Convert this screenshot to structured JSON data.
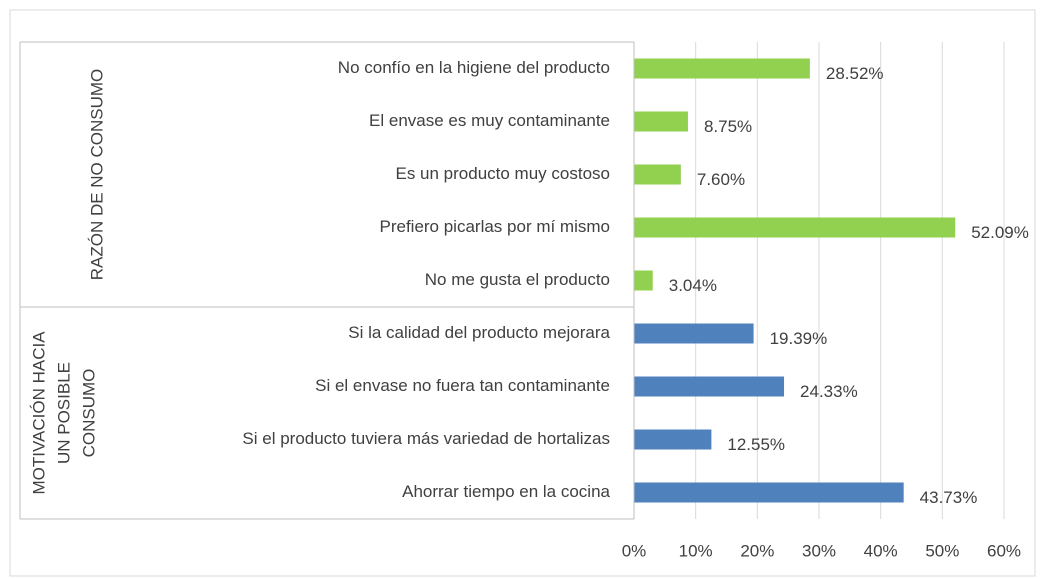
{
  "chart_data": {
    "type": "bar",
    "orientation": "horizontal",
    "series": [
      {
        "name": [
          "RAZÓN DE NO CONSUMO"
        ],
        "color": "#92d050",
        "categories": [
          "No confío en la higiene del producto",
          "El envase es muy contaminante",
          "Es un producto muy costoso",
          "Prefiero picarlas por mí mismo",
          "No me gusta el producto"
        ],
        "values": [
          28.52,
          8.75,
          7.6,
          52.09,
          3.04
        ],
        "value_labels": [
          "28.52%",
          "8.75%",
          "7.60%",
          "52.09%",
          "3.04%"
        ]
      },
      {
        "name": [
          "MOTIVACIÓN HACIA",
          "UN POSIBLE",
          "CONSUMO"
        ],
        "color": "#4f81bd",
        "categories": [
          "Si la calidad del producto mejorara",
          "Si el envase no fuera tan contaminante",
          "Si el producto tuviera más variedad de hortalizas",
          "Ahorrar tiempo en la cocina"
        ],
        "values": [
          19.39,
          24.33,
          12.55,
          43.73
        ],
        "value_labels": [
          "19.39%",
          "24.33%",
          "12.55%",
          "43.73%"
        ]
      }
    ],
    "xlim": [
      0,
      60
    ],
    "xticks": [
      {
        "value": 0,
        "label": "0%"
      },
      {
        "value": 10,
        "label": "10%"
      },
      {
        "value": 20,
        "label": "20%"
      },
      {
        "value": 30,
        "label": "30%"
      },
      {
        "value": 40,
        "label": "40%"
      },
      {
        "value": 50,
        "label": "50%"
      },
      {
        "value": 60,
        "label": "60%"
      }
    ],
    "grid": true
  }
}
